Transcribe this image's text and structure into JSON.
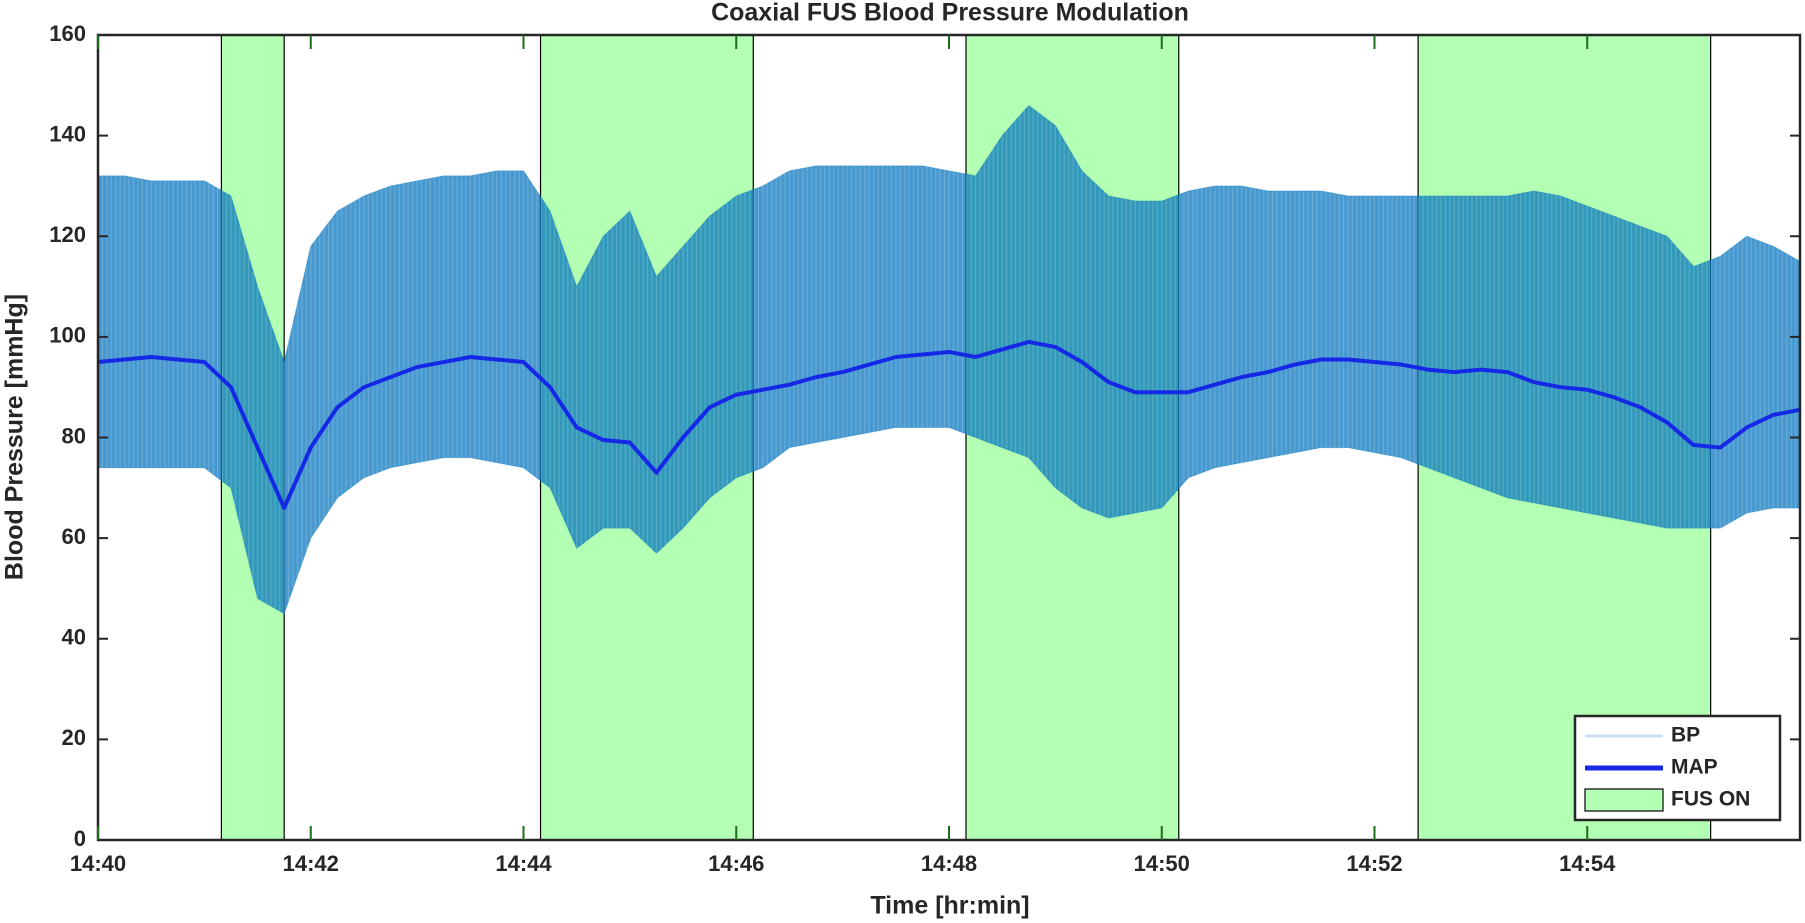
{
  "chart_data": {
    "type": "line",
    "title": "Coaxial FUS Blood Pressure Modulation",
    "xlabel": "Time [hr:min]",
    "ylabel": "Blood Pressure [mmHg]",
    "x": [
      880,
      880.25,
      880.5,
      880.75,
      881,
      881.25,
      881.5,
      881.75,
      882,
      882.25,
      882.5,
      882.75,
      883,
      883.25,
      883.5,
      883.75,
      884,
      884.25,
      884.5,
      884.75,
      885,
      885.25,
      885.5,
      885.75,
      886,
      886.25,
      886.5,
      886.75,
      887,
      887.25,
      887.5,
      887.75,
      888,
      888.25,
      888.5,
      888.75,
      889,
      889.25,
      889.5,
      889.75,
      890,
      890.25,
      890.5,
      890.75,
      891,
      891.25,
      891.5,
      891.75,
      892,
      892.25,
      892.5,
      892.75,
      893,
      893.25,
      893.5,
      893.75,
      894,
      894.25,
      894.5,
      894.75,
      895,
      895.25,
      895.5,
      895.75,
      896
    ],
    "series": [
      {
        "name": "BP",
        "color": "#0072bd",
        "legend_color": "#c8def2",
        "values": [
          132,
          132,
          131,
          131,
          131,
          128,
          110,
          95,
          118,
          125,
          128,
          130,
          131,
          132,
          132,
          133,
          133,
          125,
          110,
          120,
          125,
          112,
          118,
          124,
          128,
          130,
          133,
          134,
          134,
          134,
          134,
          134,
          133,
          132,
          140,
          146,
          142,
          133,
          128,
          127,
          127,
          129,
          130,
          130,
          129,
          129,
          129,
          128,
          128,
          128,
          128,
          128,
          128,
          128,
          129,
          128,
          126,
          124,
          122,
          120,
          114,
          116,
          120,
          118,
          115
        ],
        "lower": [
          74,
          74,
          74,
          74,
          74,
          70,
          48,
          45,
          60,
          68,
          72,
          74,
          75,
          76,
          76,
          75,
          74,
          70,
          58,
          62,
          62,
          57,
          62,
          68,
          72,
          74,
          78,
          79,
          80,
          81,
          82,
          82,
          82,
          80,
          78,
          76,
          70,
          66,
          64,
          65,
          66,
          72,
          74,
          75,
          76,
          77,
          78,
          78,
          77,
          76,
          74,
          72,
          70,
          68,
          67,
          66,
          65,
          64,
          63,
          62,
          62,
          62,
          65,
          66,
          66
        ]
      },
      {
        "name": "MAP",
        "color": "#1428e6",
        "values": [
          95,
          95.5,
          96,
          95.5,
          95,
          90,
          78,
          66,
          78,
          86,
          90,
          92,
          94,
          95,
          96,
          95.5,
          95,
          90,
          82,
          79.5,
          79,
          73,
          80,
          86,
          88.5,
          89.5,
          90.5,
          92,
          93,
          94.5,
          96,
          96.5,
          97,
          96,
          97.5,
          99,
          98,
          95,
          91,
          89,
          89,
          89,
          90.5,
          92,
          93,
          94.5,
          95.5,
          95.5,
          95,
          94.5,
          93.5,
          93,
          93.5,
          93,
          91,
          90,
          89.5,
          88,
          86,
          83,
          78.5,
          78,
          82,
          84.5,
          85.5
        ]
      }
    ],
    "shaded": {
      "name": "FUS ON",
      "color": "#b3ffb3",
      "spans": [
        [
          881.16,
          881.75
        ],
        [
          884.16,
          886.16
        ],
        [
          888.16,
          890.16
        ],
        [
          892.41,
          895.16
        ]
      ]
    },
    "xlim": [
      880,
      896
    ],
    "xticks": [
      {
        "value": 880,
        "label": "14:40"
      },
      {
        "value": 882,
        "label": "14:42"
      },
      {
        "value": 884,
        "label": "14:44"
      },
      {
        "value": 886,
        "label": "14:46"
      },
      {
        "value": 888,
        "label": "14:48"
      },
      {
        "value": 890,
        "label": "14:50"
      },
      {
        "value": 892,
        "label": "14:52"
      },
      {
        "value": 894,
        "label": "14:54"
      }
    ],
    "ylim": [
      0,
      160
    ],
    "yticks": [
      0,
      20,
      40,
      60,
      80,
      100,
      120,
      140,
      160
    ],
    "grid": false,
    "legend": "lower right"
  }
}
